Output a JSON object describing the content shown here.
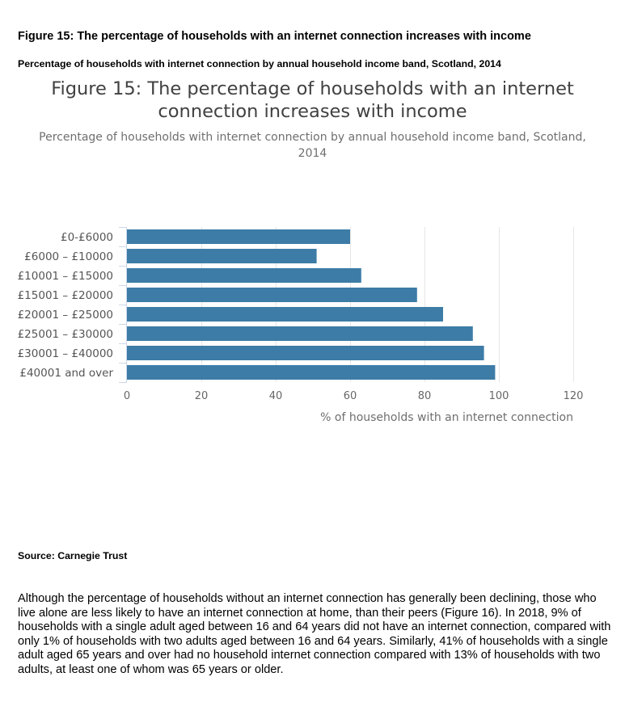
{
  "document": {
    "heading": "Figure 15: The percentage of households with an internet connection increases with income",
    "subheading": "Percentage of households with internet connection by annual household income band, Scotland, 2014",
    "source": "Source: Carnegie Trust",
    "paragraph": "Although the percentage of households without an internet connection has generally been declining, those who live alone are less likely to have an internet connection at home, than their peers (Figure 16). In 2018, 9% of households with a single adult aged between 16 and 64 years did not have an internet connection, compared with only 1% of households with two adults aged between 16 and 64 years. Similarly, 41% of households with a single adult aged 65 years and over had no household internet connection compared with 13% of households with two adults, at least one of whom was 65 years or older."
  },
  "chart_data": {
    "type": "bar",
    "orientation": "horizontal",
    "title_line1": "Figure 15: The percentage of households with an internet",
    "title_line2": "connection increases with income",
    "subtitle_line1": "Percentage of households with internet connection by annual household income band, Scotland,",
    "subtitle_line2": "2014",
    "categories": [
      "£0-£6000",
      "£6000 – £10000",
      "£10001 – £15000",
      "£15001 – £20000",
      "£20001 – £25000",
      "£25001 – £30000",
      "£30001 – £40000",
      "£40001 and over"
    ],
    "values": [
      60,
      51,
      63,
      78,
      85,
      93,
      96,
      99
    ],
    "xlabel": "% of households with an internet connection",
    "ylabel": "",
    "xlim": [
      0,
      120
    ],
    "xticks": [
      0,
      20,
      40,
      60,
      80,
      100,
      120
    ],
    "grid": true,
    "bar_color": "#3d7ca6",
    "grid_color": "#e6e6e6"
  }
}
